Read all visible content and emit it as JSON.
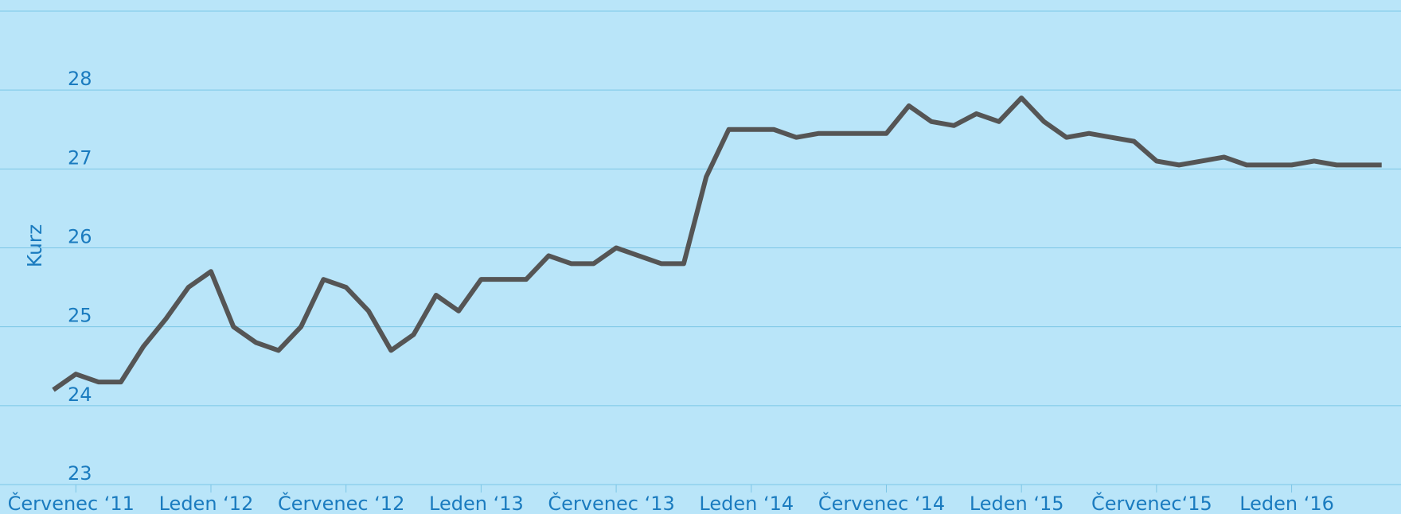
{
  "chart_data": {
    "type": "line",
    "y_label": "Kurz",
    "x": [
      "2011-06",
      "2011-07",
      "2011-08",
      "2011-09",
      "2011-10",
      "2011-11",
      "2011-12",
      "2012-01",
      "2012-02",
      "2012-03",
      "2012-04",
      "2012-05",
      "2012-06",
      "2012-07",
      "2012-08",
      "2012-09",
      "2012-10",
      "2012-11",
      "2012-12",
      "2013-01",
      "2013-02",
      "2013-03",
      "2013-04",
      "2013-05",
      "2013-06",
      "2013-07",
      "2013-08",
      "2013-09",
      "2013-10",
      "2013-11",
      "2013-12",
      "2014-01",
      "2014-02",
      "2014-03",
      "2014-04",
      "2014-05",
      "2014-06",
      "2014-07",
      "2014-08",
      "2014-09",
      "2014-10",
      "2014-11",
      "2014-12",
      "2015-01",
      "2015-02",
      "2015-03",
      "2015-04",
      "2015-05",
      "2015-06",
      "2015-07",
      "2015-08",
      "2015-09",
      "2015-10",
      "2015-11",
      "2015-12",
      "2016-01",
      "2016-02",
      "2016-03",
      "2016-04",
      "2016-05"
    ],
    "series": [
      {
        "color": "#555555",
        "values": [
          24.2,
          24.4,
          24.3,
          24.3,
          24.75,
          25.1,
          25.5,
          25.7,
          25.0,
          24.8,
          24.7,
          25.0,
          25.6,
          25.5,
          25.2,
          24.7,
          24.9,
          25.4,
          25.2,
          25.6,
          25.6,
          25.6,
          25.9,
          25.8,
          25.8,
          26.0,
          25.9,
          25.8,
          25.8,
          26.9,
          27.5,
          27.5,
          27.5,
          27.4,
          27.45,
          27.45,
          27.45,
          27.45,
          27.8,
          27.6,
          27.55,
          27.7,
          27.6,
          27.9,
          27.6,
          27.4,
          27.45,
          27.4,
          27.35,
          27.1,
          27.05,
          27.1,
          27.15,
          27.05,
          27.05,
          27.05,
          27.1,
          27.05,
          27.05,
          27.05
        ]
      }
    ],
    "xlim": [
      "2011-06",
      "2016-06"
    ],
    "xticks": [
      {
        "value": "2011-07",
        "label": "Červenec ‘11"
      },
      {
        "value": "2012-01",
        "label": "Leden ‘12"
      },
      {
        "value": "2012-07",
        "label": "Červenec ‘12"
      },
      {
        "value": "2013-01",
        "label": "Leden ‘13"
      },
      {
        "value": "2013-07",
        "label": "Červenec ‘13"
      },
      {
        "value": "2014-01",
        "label": "Leden ‘14"
      },
      {
        "value": "2014-07",
        "label": "Červenec ‘14"
      },
      {
        "value": "2015-01",
        "label": "Leden ‘15"
      },
      {
        "value": "2015-07",
        "label": "Červenec‘15"
      },
      {
        "value": "2016-01",
        "label": "Leden ‘16"
      }
    ],
    "ylim": [
      23,
      29
    ],
    "yticks": [
      23,
      24,
      25,
      26,
      27,
      28
    ],
    "grid": true
  }
}
